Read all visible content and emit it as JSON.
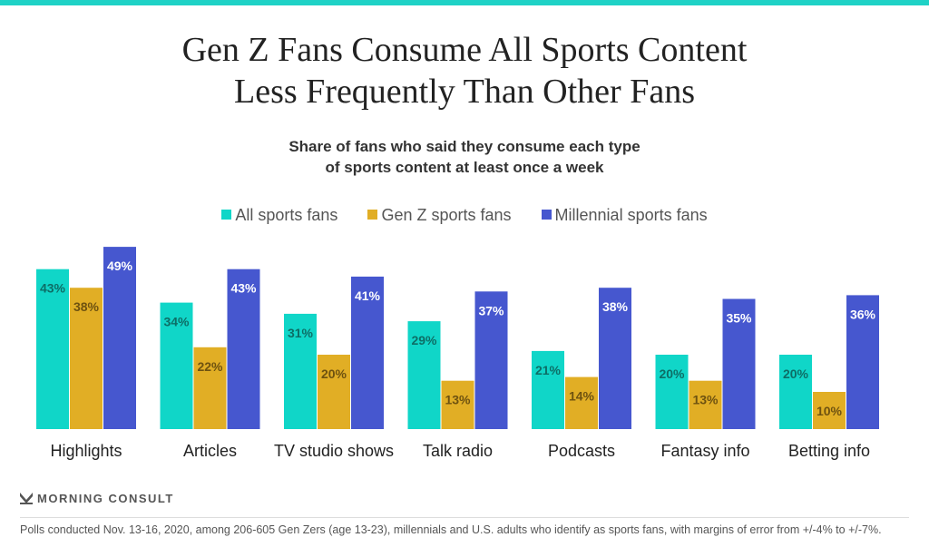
{
  "chart_data": {
    "type": "bar",
    "title": "Gen Z Fans Consume All Sports Content Less Frequently Than Other Fans",
    "subtitle": [
      "Share of fans who said they consume each type",
      "of sports content at least once a week"
    ],
    "categories": [
      "Highlights",
      "Articles",
      "TV studio shows",
      "Talk radio",
      "Podcasts",
      "Fantasy info",
      "Betting info"
    ],
    "series": [
      {
        "name": "All sports fans",
        "color": "#10d6c8",
        "label_color": "#0d6e66",
        "values": [
          43,
          34,
          31,
          29,
          21,
          20,
          20
        ]
      },
      {
        "name": "Gen Z sports fans",
        "color": "#e1ae25",
        "label_color": "#6e5210",
        "values": [
          38,
          22,
          20,
          13,
          14,
          13,
          10
        ]
      },
      {
        "name": "Millennial sports fans",
        "color": "#4657cf",
        "label_color": "#ffffff",
        "values": [
          49,
          43,
          41,
          37,
          38,
          35,
          36
        ]
      }
    ],
    "value_format": "percent",
    "legend": "top",
    "grid": false,
    "ylim": [
      0,
      49
    ]
  },
  "title_lines": [
    "Gen Z Fans Consume All Sports Content",
    "Less Frequently Than Other Fans"
  ],
  "brand": "MORNING CONSULT",
  "footnote": "Polls conducted Nov. 13-16, 2020, among 206-605 Gen Zers (age 13-23), millennials and U.S. adults who identify as sports fans, with margins of error from +/-4% to +/-7%."
}
